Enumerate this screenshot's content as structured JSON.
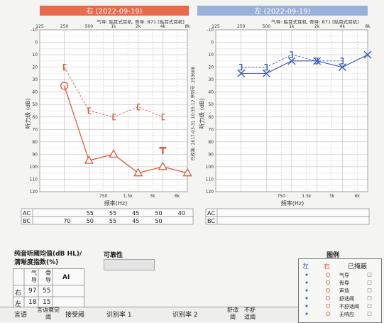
{
  "right_chart": {
    "header": "右    (2022-09-19)",
    "subtitle": "气导: 贴耳式耳机, 骨导: B71 [贴耳式耳机]",
    "top_ticks": [
      "125",
      "250",
      "500",
      "1k",
      "2k",
      "4k",
      "8k"
    ],
    "bottom_ticks": [
      "750",
      "1.5k",
      "3k",
      "6k"
    ],
    "y_ticks": [
      "-10",
      "0",
      "10",
      "20",
      "30",
      "40",
      "50",
      "60",
      "70",
      "80",
      "90",
      "100",
      "110",
      "120"
    ],
    "ylabel": "听力级 (dB)",
    "xlabel": "频率(Hz)",
    "side_text": "已校准: 2017-03-31 10:35:12  序列号: 253688"
  },
  "left_chart": {
    "header": "左    (2022-09-19)",
    "subtitle": "气导: 贴耳式耳机, 骨导: B71 [贴耳式耳机]",
    "top_ticks": [
      "125",
      "250",
      "500",
      "1k",
      "2k",
      "4k",
      "8k"
    ],
    "bottom_ticks": [
      "750",
      "1.5k",
      "3k",
      "6k"
    ],
    "y_ticks": [
      "-10",
      "0",
      "10",
      "20",
      "30",
      "40",
      "50",
      "60",
      "70",
      "80",
      "90",
      "100",
      "110",
      "120"
    ],
    "ylabel": "听力级 (dB)",
    "xlabel": "频率(Hz)"
  },
  "chart_data": [
    {
      "type": "line",
      "title": "右 (2022-09-19)",
      "xlabel": "频率(Hz)",
      "ylabel": "听力级 (dB)",
      "ylim": [
        -10,
        120
      ],
      "y_inverted": true,
      "x_scale": "log",
      "series": [
        {
          "marker": "circle",
          "x": [
            250
          ],
          "y": [
            35
          ]
        },
        {
          "marker": "triangle",
          "x": [
            500,
            1000,
            2000,
            4000,
            8000
          ],
          "y": [
            95,
            90,
            105,
            100,
            105
          ]
        },
        {
          "marker": "bracket",
          "x": [
            250,
            500,
            1000,
            2000,
            4000
          ],
          "y": [
            20,
            55,
            60,
            52,
            60
          ]
        },
        {
          "marker": "T",
          "x": [
            4000
          ],
          "y": [
            87
          ]
        }
      ],
      "colors": {
        "right": "#e05a3a"
      }
    },
    {
      "type": "line",
      "title": "左 (2022-09-19)",
      "xlabel": "频率(Hz)",
      "ylabel": "听力级 (dB)",
      "ylim": [
        -10,
        120
      ],
      "y_inverted": true,
      "x_scale": "log",
      "series": [
        {
          "marker": "x",
          "x": [
            250,
            500,
            1000,
            2000,
            4000,
            8000
          ],
          "y": [
            25,
            25,
            15,
            15,
            20,
            10
          ]
        },
        {
          "marker": "bracket",
          "x": [
            250,
            500,
            1000,
            2000,
            4000
          ],
          "y": [
            20,
            20,
            10,
            15,
            15
          ]
        }
      ],
      "colors": {
        "left": "#3a5ab0"
      }
    }
  ],
  "ac_bc_right": {
    "row_labels": [
      "AC",
      "BC"
    ],
    "ac": [
      "",
      "",
      "55",
      "55",
      "45",
      "50",
      "40"
    ],
    "bc": [
      "",
      "70",
      "50",
      "55",
      "45",
      "50",
      ""
    ]
  },
  "ac_bc_left": {
    "row_labels": [
      "AC",
      "BC"
    ]
  },
  "summary": {
    "title_line1": "纯音听阈均值(dB HL)/",
    "title_line2": "清晰度指数(%)",
    "reliability": "可靠性",
    "col_air": "气导",
    "col_bone": "骨导",
    "col_ai": "AI",
    "row_right": "右",
    "row_left": "左",
    "right_air": "97",
    "right_bone": "55",
    "left_air": "18",
    "left_bone": "15"
  },
  "speech_row": {
    "c1": "言语",
    "c2": "言语察觉阈",
    "c3": "接受阈",
    "c4": "识别率 1",
    "c5": "识别率 2",
    "c6": "舒适阈",
    "c7": "不舒适阈"
  },
  "legend": {
    "title": "图例",
    "left": "左",
    "right": "右",
    "masked": "已掩蔽",
    "items": [
      "气导",
      "骨导",
      "声场",
      "舒适阈",
      "不舒适阈",
      "无响应"
    ]
  }
}
